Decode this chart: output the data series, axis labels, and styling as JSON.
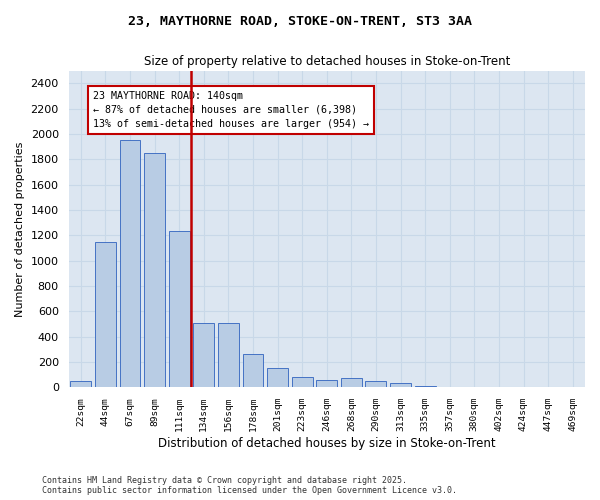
{
  "title_line1": "23, MAYTHORNE ROAD, STOKE-ON-TRENT, ST3 3AA",
  "title_line2": "Size of property relative to detached houses in Stoke-on-Trent",
  "xlabel": "Distribution of detached houses by size in Stoke-on-Trent",
  "ylabel": "Number of detached properties",
  "categories": [
    "22sqm",
    "44sqm",
    "67sqm",
    "89sqm",
    "111sqm",
    "134sqm",
    "156sqm",
    "178sqm",
    "201sqm",
    "223sqm",
    "246sqm",
    "268sqm",
    "290sqm",
    "313sqm",
    "335sqm",
    "357sqm",
    "380sqm",
    "402sqm",
    "424sqm",
    "447sqm",
    "469sqm"
  ],
  "values": [
    50,
    1150,
    1950,
    1850,
    1230,
    510,
    510,
    260,
    150,
    80,
    60,
    70,
    50,
    30,
    10,
    5,
    2,
    1,
    0,
    0,
    0
  ],
  "bar_color": "#b8cce4",
  "bar_edge_color": "#4472c4",
  "vline_color": "#c00000",
  "vline_x_index": 5,
  "annotation_text": "23 MAYTHORNE ROAD: 140sqm\n← 87% of detached houses are smaller (6,398)\n13% of semi-detached houses are larger (954) →",
  "annotation_box_color": "#ffffff",
  "annotation_box_edge": "#c00000",
  "ylim_max": 2500,
  "yticks": [
    0,
    200,
    400,
    600,
    800,
    1000,
    1200,
    1400,
    1600,
    1800,
    2000,
    2200,
    2400
  ],
  "grid_color": "#c8d8e8",
  "bg_color": "#dce6f1",
  "footer_line1": "Contains HM Land Registry data © Crown copyright and database right 2025.",
  "footer_line2": "Contains public sector information licensed under the Open Government Licence v3.0."
}
